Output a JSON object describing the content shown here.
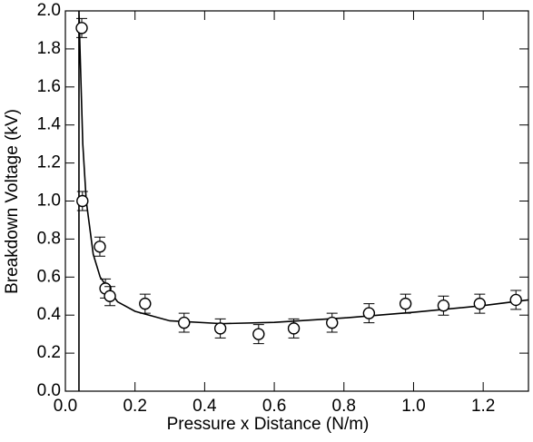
{
  "chart_data": {
    "type": "scatter",
    "x_label": "Pressure x Distance (N/m)",
    "y_label": "Breakdown Voltage (kV)",
    "xlim": [
      0,
      1.33
    ],
    "ylim": [
      0,
      2.0
    ],
    "xticks": [
      {
        "value": 0,
        "label": "0.0"
      },
      0.2,
      0.4,
      0.6,
      0.8,
      {
        "value": 1,
        "label": "1.0"
      },
      1.2
    ],
    "yticks": [
      {
        "value": 0,
        "label": "0.0"
      },
      0.2,
      0.4,
      0.6,
      0.8,
      {
        "value": 1,
        "label": "1.0"
      },
      1.2,
      1.4,
      1.6,
      1.8,
      {
        "value": 2,
        "label": "2.0"
      }
    ],
    "color": "#000000",
    "points": {
      "x": [
        0.047,
        0.049,
        0.099,
        0.115,
        0.128,
        0.229,
        0.341,
        0.445,
        0.555,
        0.656,
        0.766,
        0.872,
        0.977,
        1.086,
        1.19,
        1.294
      ],
      "values": [
        1.91,
        1.0,
        0.76,
        0.54,
        0.5,
        0.46,
        0.36,
        0.33,
        0.3,
        0.33,
        0.36,
        0.41,
        0.46,
        0.45,
        0.46,
        0.48
      ],
      "errors": [
        0.05,
        0.05,
        0.05,
        0.05,
        0.05,
        0.05,
        0.05,
        0.05,
        0.05,
        0.05,
        0.05,
        0.05,
        0.05,
        0.05,
        0.05,
        0.05
      ]
    },
    "fit": {
      "x": [
        0.039,
        0.039,
        0.042,
        0.05,
        0.06,
        0.08,
        0.1,
        0.15,
        0.2,
        0.3,
        0.45,
        0.6,
        0.8,
        1.0,
        1.2,
        1.33
      ],
      "values": [
        0,
        2.0,
        1.8,
        1.3,
        1.0,
        0.72,
        0.6,
        0.47,
        0.42,
        0.37,
        0.355,
        0.362,
        0.385,
        0.415,
        0.45,
        0.48
      ]
    }
  }
}
